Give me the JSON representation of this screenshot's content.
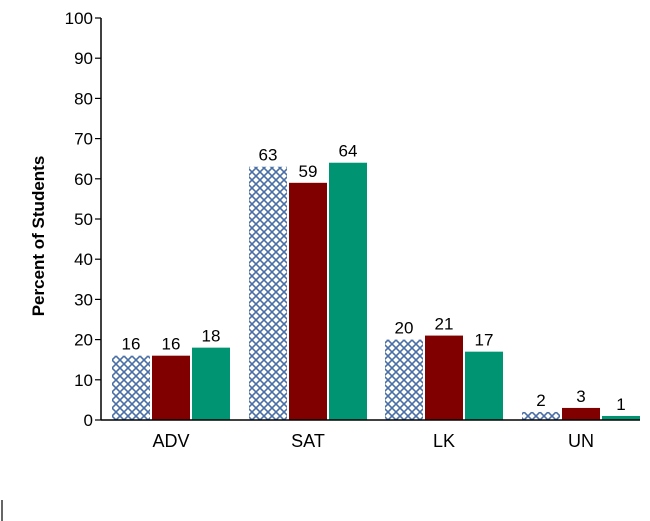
{
  "chart_data": {
    "type": "bar",
    "categories": [
      "ADV",
      "SAT",
      "LK",
      "UN"
    ],
    "series": [
      {
        "values": [
          16,
          63,
          20,
          2
        ],
        "pattern": "crosshatch",
        "color": "#4a6fa5"
      },
      {
        "values": [
          16,
          59,
          21,
          3
        ],
        "color": "#800000"
      },
      {
        "values": [
          18,
          64,
          17,
          1
        ],
        "color": "#009473"
      }
    ],
    "xlabel": "",
    "ylabel": "Percent of Students",
    "ylim": [
      0,
      100
    ],
    "yticks": [
      0,
      10,
      20,
      30,
      40,
      50,
      60,
      70,
      80,
      90,
      100
    ],
    "grid": false,
    "legend": "none"
  }
}
